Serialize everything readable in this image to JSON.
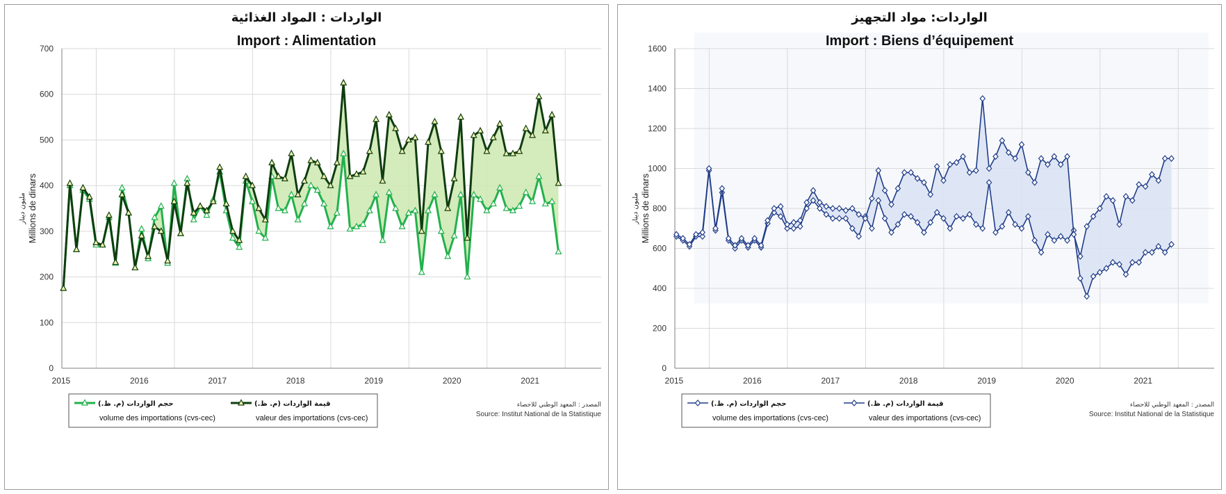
{
  "chart_data": [
    {
      "type": "line",
      "title_ar": "الواردات : المواد  الغذائية",
      "title": "Import : Alimentation",
      "ylabel": "Millions de dinars",
      "ylabel_ar": "مليون دينار",
      "ylim": [
        0,
        700
      ],
      "yticks": [
        0,
        100,
        200,
        300,
        400,
        500,
        600,
        700
      ],
      "xlim": [
        2014.6,
        2021.5
      ],
      "x_ticks": [
        "2015",
        "2016",
        "2017",
        "2018",
        "2019",
        "2020",
        "2021"
      ],
      "grid": true,
      "legend_position": "bottom-left",
      "fill_between": true,
      "colors": {
        "volume": "#22b14c",
        "valeur": "#0f3d0f",
        "fill": "#cde8b0"
      },
      "series": [
        {
          "key": "volume",
          "name_ar": "حجم الواردات (م. ظ.)",
          "name": "volume des importations (cvs-cec)",
          "values": [
            175,
            400,
            260,
            390,
            370,
            270,
            270,
            330,
            230,
            395,
            340,
            220,
            305,
            240,
            330,
            355,
            230,
            405,
            295,
            415,
            325,
            355,
            335,
            370,
            430,
            345,
            285,
            265,
            410,
            365,
            300,
            285,
            420,
            350,
            345,
            380,
            325,
            360,
            400,
            390,
            360,
            310,
            340,
            470,
            305,
            310,
            315,
            345,
            380,
            280,
            385,
            350,
            310,
            340,
            345,
            210,
            345,
            380,
            300,
            245,
            290,
            380,
            200,
            380,
            370,
            345,
            360,
            395,
            350,
            345,
            355,
            385,
            365,
            420,
            360,
            365,
            255
          ]
        },
        {
          "key": "valeur",
          "name_ar": "قيمة  الواردات (م. ظ.)",
          "name": "valeur des importations (cvs-cec)",
          "values": [
            175,
            405,
            260,
            395,
            375,
            275,
            270,
            335,
            232,
            380,
            340,
            220,
            290,
            245,
            310,
            300,
            235,
            365,
            295,
            405,
            340,
            355,
            345,
            365,
            440,
            360,
            300,
            280,
            420,
            400,
            350,
            325,
            450,
            420,
            415,
            470,
            380,
            410,
            455,
            450,
            420,
            400,
            450,
            625,
            420,
            425,
            430,
            475,
            545,
            410,
            555,
            525,
            475,
            500,
            505,
            300,
            495,
            540,
            475,
            350,
            415,
            550,
            285,
            510,
            520,
            475,
            505,
            535,
            470,
            470,
            475,
            525,
            510,
            595,
            520,
            555,
            405
          ]
        }
      ],
      "source_ar": "المصدر : المعهد الوطني للاحصاء",
      "source": "Source: Institut National de la Statistique"
    },
    {
      "type": "line",
      "title_ar": "الواردات: مواد التجهيز",
      "title": "Import : Biens d’équipement",
      "ylabel": "Millions de dinars",
      "ylabel_ar": "مليون دينار",
      "ylim": [
        0,
        1600
      ],
      "yticks": [
        0,
        200,
        400,
        600,
        800,
        1000,
        1200,
        1400,
        1600
      ],
      "xlim": [
        2014.6,
        2021.5
      ],
      "x_ticks": [
        "2015",
        "2016",
        "2017",
        "2018",
        "2019",
        "2020",
        "2021"
      ],
      "grid": true,
      "legend_position": "bottom-left",
      "fill_between": true,
      "colors": {
        "volume": "#1f3c88",
        "valeur": "#1f3c88",
        "fill": "#d9e2f3"
      },
      "series": [
        {
          "key": "volume",
          "name_ar": "حجم الواردات (م. ظ.)",
          "name": "volume des importations (cvs-cec)",
          "values": [
            660,
            640,
            610,
            660,
            660,
            990,
            690,
            880,
            640,
            600,
            640,
            605,
            640,
            605,
            725,
            780,
            760,
            700,
            700,
            710,
            800,
            840,
            800,
            770,
            750,
            750,
            750,
            700,
            660,
            760,
            700,
            840,
            750,
            680,
            720,
            770,
            760,
            730,
            680,
            730,
            780,
            750,
            700,
            760,
            750,
            770,
            720,
            700,
            930,
            680,
            710,
            780,
            720,
            700,
            760,
            640,
            580,
            670,
            640,
            660,
            640,
            690,
            450,
            360,
            460,
            480,
            500,
            530,
            520,
            470,
            530,
            530,
            580,
            580,
            610,
            580,
            620
          ]
        },
        {
          "key": "valeur",
          "name_ar": "قيمة  الواردات (م. ظ.)",
          "name": "valeur des importations (cvs-cec)",
          "values": [
            670,
            650,
            620,
            670,
            680,
            1000,
            700,
            900,
            650,
            615,
            650,
            615,
            650,
            615,
            740,
            800,
            810,
            720,
            730,
            740,
            830,
            890,
            830,
            810,
            800,
            800,
            790,
            800,
            770,
            750,
            850,
            990,
            890,
            820,
            900,
            980,
            980,
            950,
            930,
            870,
            1010,
            940,
            1020,
            1030,
            1060,
            980,
            990,
            1350,
            1000,
            1060,
            1140,
            1080,
            1050,
            1120,
            980,
            930,
            1050,
            1020,
            1060,
            1020,
            1060,
            670,
            560,
            710,
            760,
            800,
            860,
            840,
            720,
            860,
            840,
            920,
            910,
            970,
            940,
            1050,
            1050
          ]
        }
      ],
      "source_ar": "المصدر : المعهد الوطني للاحصاء",
      "source": "Source: Institut National de la Statistique"
    }
  ]
}
